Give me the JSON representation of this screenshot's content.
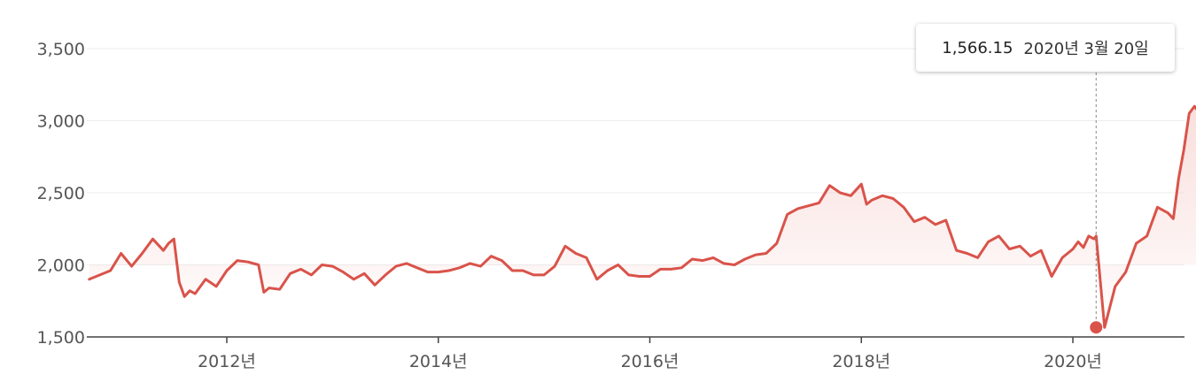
{
  "chart_data": {
    "type": "area",
    "y_ticks": [
      "1,500",
      "2,000",
      "2,500",
      "3,000",
      "3,500"
    ],
    "y_tick_values": [
      1500,
      2000,
      2500,
      3000,
      3500
    ],
    "ylim": [
      1500,
      3500
    ],
    "x_ticks": [
      "2012년",
      "2014년",
      "2016년",
      "2018년",
      "2020년"
    ],
    "x_tick_values": [
      2012.0,
      2014.0,
      2016.0,
      2018.0,
      2020.0
    ],
    "xlim": [
      2010.7,
      2021.25
    ],
    "grid": true,
    "line_color": "#d9534a",
    "fill_color": "#f3c4c0",
    "series": [
      {
        "x": [
          2010.7,
          2010.8,
          2010.9,
          2011.0,
          2011.1,
          2011.2,
          2011.3,
          2011.4,
          2011.45,
          2011.5,
          2011.55,
          2011.6,
          2011.65,
          2011.7,
          2011.8,
          2011.9,
          2012.0,
          2012.1,
          2012.2,
          2012.3,
          2012.35,
          2012.4,
          2012.5,
          2012.6,
          2012.7,
          2012.8,
          2012.9,
          2013.0,
          2013.1,
          2013.2,
          2013.3,
          2013.4,
          2013.5,
          2013.6,
          2013.7,
          2013.8,
          2013.9,
          2014.0,
          2014.1,
          2014.2,
          2014.3,
          2014.4,
          2014.5,
          2014.6,
          2014.7,
          2014.8,
          2014.9,
          2015.0,
          2015.1,
          2015.2,
          2015.3,
          2015.4,
          2015.5,
          2015.6,
          2015.7,
          2015.8,
          2015.9,
          2016.0,
          2016.1,
          2016.2,
          2016.3,
          2016.4,
          2016.5,
          2016.6,
          2016.7,
          2016.8,
          2016.9,
          2017.0,
          2017.1,
          2017.2,
          2017.3,
          2017.4,
          2017.5,
          2017.6,
          2017.7,
          2017.8,
          2017.9,
          2018.0,
          2018.05,
          2018.1,
          2018.2,
          2018.3,
          2018.4,
          2018.5,
          2018.6,
          2018.7,
          2018.8,
          2018.9,
          2019.0,
          2019.1,
          2019.2,
          2019.3,
          2019.4,
          2019.5,
          2019.6,
          2019.7,
          2019.8,
          2019.9,
          2020.0,
          2020.05,
          2020.1,
          2020.15,
          2020.2,
          2020.22,
          2020.3,
          2020.4,
          2020.5,
          2020.6,
          2020.7,
          2020.8,
          2020.9,
          2020.95,
          2021.0,
          2021.05,
          2021.1,
          2021.15,
          2021.2
        ],
        "values": [
          1900,
          1930,
          1960,
          2080,
          1990,
          2080,
          2180,
          2100,
          2150,
          2180,
          1880,
          1780,
          1820,
          1800,
          1900,
          1850,
          1960,
          2030,
          2020,
          2000,
          1810,
          1840,
          1830,
          1940,
          1970,
          1930,
          2000,
          1990,
          1950,
          1900,
          1940,
          1860,
          1930,
          1990,
          2010,
          1980,
          1950,
          1950,
          1960,
          1980,
          2010,
          1990,
          2060,
          2030,
          1960,
          1960,
          1930,
          1930,
          1990,
          2130,
          2080,
          2050,
          1900,
          1960,
          2000,
          1930,
          1920,
          1920,
          1970,
          1970,
          1980,
          2040,
          2030,
          2050,
          2010,
          2000,
          2040,
          2070,
          2080,
          2150,
          2350,
          2390,
          2410,
          2430,
          2550,
          2500,
          2480,
          2560,
          2420,
          2450,
          2480,
          2460,
          2400,
          2300,
          2330,
          2280,
          2310,
          2100,
          2080,
          2050,
          2160,
          2200,
          2110,
          2130,
          2060,
          2100,
          1920,
          2050,
          2110,
          2160,
          2120,
          2200,
          2180,
          2200,
          1566,
          1850,
          1950,
          2150,
          2200,
          2400,
          2360,
          2320,
          2600,
          2800,
          3050,
          3100,
          3050
        ]
      }
    ]
  },
  "tooltip": {
    "value": "1,566.15",
    "date": "2020년 3월 20일",
    "x": 2020.22,
    "y": 1566.15
  }
}
